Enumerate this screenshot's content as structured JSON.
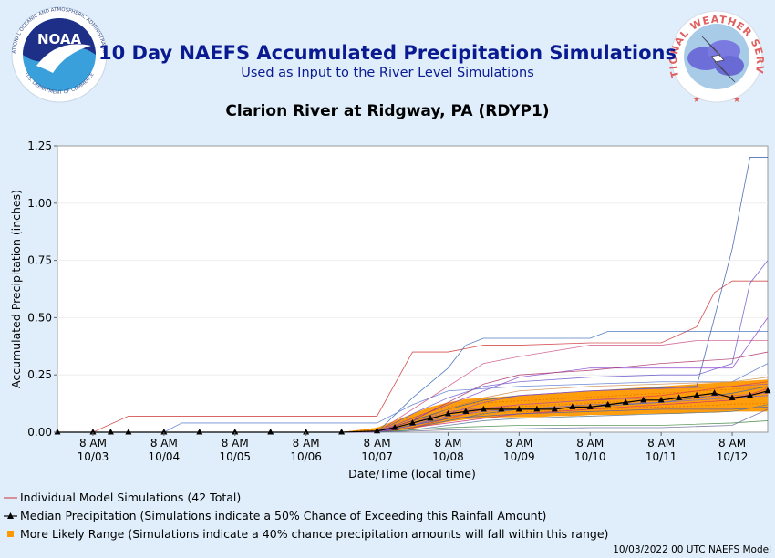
{
  "header": {
    "title": "10 Day NAEFS Accumulated Precipitation Simulations",
    "subtitle": "Used as Input to the River Level Simulations",
    "station": "Clarion River at Ridgway, PA (RDYP1)"
  },
  "logos": {
    "noaa_text": "NOAA",
    "noaa_ring_top": "NATIONAL OCEANIC AND ATMOSPHERIC ADMINISTRATION",
    "noaa_ring_bottom": "U.S. DEPARTMENT OF COMMERCE",
    "nws_ring": "NATIONAL WEATHER SERVICE"
  },
  "legend": {
    "individual": "Individual Model Simulations (42 Total)",
    "median": "Median Precipitation (Simulations indicate a 50% Chance of Exceeding this Rainfall Amount)",
    "range": "More Likely Range (Simulations indicate a 40% chance precipitation amounts will fall within this range)"
  },
  "footer": "10/03/2022 00 UTC NAEFS Model",
  "colors": {
    "title": "#0a1a90",
    "median": "#000000",
    "range": "#ff9900",
    "individual": "#cc3333"
  },
  "chart_data": {
    "type": "line",
    "xlabel": "Date/Time (local time)",
    "ylabel": "Accumulated Precipitation (inches)",
    "ylim": [
      0,
      1.25
    ],
    "yticks": [
      "0.00",
      "0.25",
      "0.50",
      "0.75",
      "1.00",
      "1.25"
    ],
    "xticks": [
      {
        "time": "8 AM",
        "date": "10/03"
      },
      {
        "time": "8 AM",
        "date": "10/04"
      },
      {
        "time": "8 AM",
        "date": "10/05"
      },
      {
        "time": "8 AM",
        "date": "10/06"
      },
      {
        "time": "8 AM",
        "date": "10/07"
      },
      {
        "time": "8 AM",
        "date": "10/08"
      },
      {
        "time": "8 AM",
        "date": "10/09"
      },
      {
        "time": "8 AM",
        "date": "10/10"
      },
      {
        "time": "8 AM",
        "date": "10/11"
      },
      {
        "time": "8 AM",
        "date": "10/12"
      }
    ],
    "x_days": [
      -0.5,
      0,
      0.25,
      0.5,
      1,
      1.5,
      2,
      2.5,
      3,
      3.5,
      4,
      4.25,
      4.5,
      4.75,
      5,
      5.25,
      5.5,
      5.75,
      6,
      6.25,
      6.5,
      6.75,
      7,
      7.25,
      7.5,
      7.75,
      8,
      8.25,
      8.5,
      8.75,
      9,
      9.25,
      9.5
    ],
    "median": [
      0,
      0,
      0,
      0,
      0,
      0,
      0,
      0,
      0,
      0,
      0.005,
      0.02,
      0.04,
      0.06,
      0.08,
      0.09,
      0.1,
      0.1,
      0.1,
      0.1,
      0.1,
      0.11,
      0.11,
      0.12,
      0.13,
      0.14,
      0.14,
      0.15,
      0.16,
      0.17,
      0.15,
      0.16,
      0.18
    ],
    "range_low": [
      0,
      0,
      0,
      0,
      0,
      0,
      0,
      0,
      0,
      0,
      0,
      0.005,
      0.015,
      0.03,
      0.045,
      0.055,
      0.06,
      0.065,
      0.065,
      0.065,
      0.07,
      0.07,
      0.075,
      0.075,
      0.075,
      0.08,
      0.08,
      0.08,
      0.085,
      0.085,
      0.09,
      0.09,
      0.09
    ],
    "range_high": [
      0,
      0,
      0,
      0,
      0,
      0,
      0,
      0,
      0,
      0,
      0.02,
      0.05,
      0.08,
      0.11,
      0.13,
      0.145,
      0.15,
      0.155,
      0.16,
      0.165,
      0.17,
      0.175,
      0.18,
      0.185,
      0.19,
      0.195,
      0.2,
      0.205,
      0.21,
      0.215,
      0.22,
      0.225,
      0.23
    ],
    "series": [
      {
        "color": "#cc3333",
        "x": [
          -0.5,
          0,
          0.5,
          4,
          4.5,
          5,
          5.5,
          6,
          7,
          8,
          8.5,
          8.75,
          9,
          9.5
        ],
        "y": [
          0,
          0,
          0.07,
          0.07,
          0.35,
          0.35,
          0.38,
          0.38,
          0.39,
          0.39,
          0.46,
          0.61,
          0.66,
          0.66
        ]
      },
      {
        "color": "#3355aa",
        "x": [
          -0.5,
          4,
          4.5,
          5,
          5.5,
          6,
          7,
          8.5,
          9,
          9.25,
          9.5
        ],
        "y": [
          0,
          0,
          0.05,
          0.1,
          0.14,
          0.16,
          0.18,
          0.2,
          0.8,
          1.2,
          1.2
        ]
      },
      {
        "color": "#6655cc",
        "x": [
          -0.5,
          4,
          4.5,
          5,
          5.5,
          6,
          7,
          8,
          8.5,
          9,
          9.25,
          9.5
        ],
        "y": [
          0,
          0,
          0.08,
          0.15,
          0.2,
          0.22,
          0.24,
          0.25,
          0.25,
          0.3,
          0.65,
          0.75
        ]
      },
      {
        "color": "#3366bb",
        "x": [
          -0.5,
          4,
          4.5,
          5,
          5.25,
          5.5,
          6,
          7,
          7.25,
          8,
          8.5,
          9.5
        ],
        "y": [
          0,
          0,
          0.15,
          0.28,
          0.38,
          0.41,
          0.41,
          0.41,
          0.44,
          0.44,
          0.44,
          0.44
        ]
      },
      {
        "color": "#cc5588",
        "x": [
          -0.5,
          4,
          4.5,
          5,
          5.5,
          6,
          7,
          8,
          8.5,
          9,
          9.5
        ],
        "y": [
          0,
          0,
          0.1,
          0.2,
          0.3,
          0.33,
          0.38,
          0.38,
          0.4,
          0.4,
          0.4
        ]
      },
      {
        "color": "#8844cc",
        "x": [
          -0.5,
          4,
          4.5,
          5,
          5.5,
          6,
          7,
          8,
          9,
          9.5
        ],
        "y": [
          0,
          0,
          0.06,
          0.12,
          0.18,
          0.24,
          0.28,
          0.28,
          0.28,
          0.5
        ]
      },
      {
        "color": "#aa3366",
        "x": [
          -0.5,
          4,
          4.5,
          5,
          5.5,
          6,
          7,
          8,
          9,
          9.5
        ],
        "y": [
          0,
          0,
          0.05,
          0.13,
          0.21,
          0.25,
          0.27,
          0.3,
          0.32,
          0.35
        ]
      },
      {
        "color": "#5577cc",
        "x": [
          -0.5,
          1,
          1.25,
          4,
          4.5,
          5,
          6,
          7,
          8,
          9,
          9.5
        ],
        "y": [
          0,
          0,
          0.04,
          0.04,
          0.12,
          0.18,
          0.2,
          0.21,
          0.22,
          0.22,
          0.3
        ]
      },
      {
        "color": "#cc8844",
        "x": [
          -0.5,
          4,
          4.5,
          5,
          5.5,
          6,
          7,
          8,
          9,
          9.5
        ],
        "y": [
          0,
          0,
          0.04,
          0.1,
          0.15,
          0.18,
          0.2,
          0.21,
          0.22,
          0.24
        ]
      },
      {
        "color": "#9955bb",
        "x": [
          -0.5,
          4,
          4.5,
          5,
          5.5,
          6,
          7,
          8,
          9,
          9.5
        ],
        "y": [
          0,
          0,
          0.03,
          0.08,
          0.13,
          0.16,
          0.18,
          0.19,
          0.2,
          0.21
        ]
      },
      {
        "color": "#dd4444",
        "x": [
          -0.5,
          4,
          4.5,
          5,
          5.5,
          6,
          7,
          8,
          9,
          9.5
        ],
        "y": [
          0,
          0,
          0.02,
          0.06,
          0.1,
          0.12,
          0.14,
          0.16,
          0.2,
          0.22
        ]
      },
      {
        "color": "#4466aa",
        "x": [
          -0.5,
          4,
          4.5,
          5,
          5.5,
          6,
          7,
          8,
          9,
          9.5
        ],
        "y": [
          0,
          0,
          0.02,
          0.05,
          0.08,
          0.1,
          0.11,
          0.13,
          0.17,
          0.2
        ]
      },
      {
        "color": "#7766dd",
        "x": [
          -0.5,
          4,
          4.5,
          5,
          5.5,
          6,
          7,
          8,
          9,
          9.5
        ],
        "y": [
          0,
          0,
          0.03,
          0.07,
          0.09,
          0.1,
          0.12,
          0.13,
          0.15,
          0.16
        ]
      },
      {
        "color": "#cc3377",
        "x": [
          -0.5,
          4,
          4.5,
          5,
          5.5,
          6,
          7,
          8,
          9,
          9.5
        ],
        "y": [
          0,
          0,
          0.02,
          0.04,
          0.06,
          0.08,
          0.1,
          0.12,
          0.14,
          0.19
        ]
      },
      {
        "color": "#557799",
        "x": [
          -0.5,
          4,
          4.5,
          5,
          5.5,
          6,
          7,
          8,
          9,
          9.5
        ],
        "y": [
          0,
          0,
          0.01,
          0.03,
          0.05,
          0.06,
          0.07,
          0.08,
          0.09,
          0.12
        ]
      },
      {
        "color": "#448844",
        "x": [
          -0.5,
          4,
          4.5,
          5,
          6,
          7,
          8,
          9,
          9.5
        ],
        "y": [
          0,
          0,
          0.01,
          0.02,
          0.03,
          0.03,
          0.03,
          0.04,
          0.05
        ]
      },
      {
        "color": "#666699",
        "x": [
          -0.5,
          4,
          4.5,
          5,
          6,
          7,
          8,
          9,
          9.5
        ],
        "y": [
          0,
          0,
          0.005,
          0.01,
          0.015,
          0.02,
          0.02,
          0.03,
          0.1
        ]
      },
      {
        "color": "#4455bb",
        "x": [
          -0.5,
          4,
          4.5,
          5,
          6,
          7,
          8,
          9,
          9.5
        ],
        "y": [
          0,
          0,
          0.03,
          0.06,
          0.08,
          0.09,
          0.1,
          0.1,
          0.11
        ]
      },
      {
        "color": "#bb6699",
        "x": [
          -0.5,
          4,
          4.5,
          5,
          6,
          7,
          8,
          9,
          9.5
        ],
        "y": [
          0,
          0,
          0.04,
          0.09,
          0.12,
          0.14,
          0.15,
          0.16,
          0.17
        ]
      }
    ]
  }
}
